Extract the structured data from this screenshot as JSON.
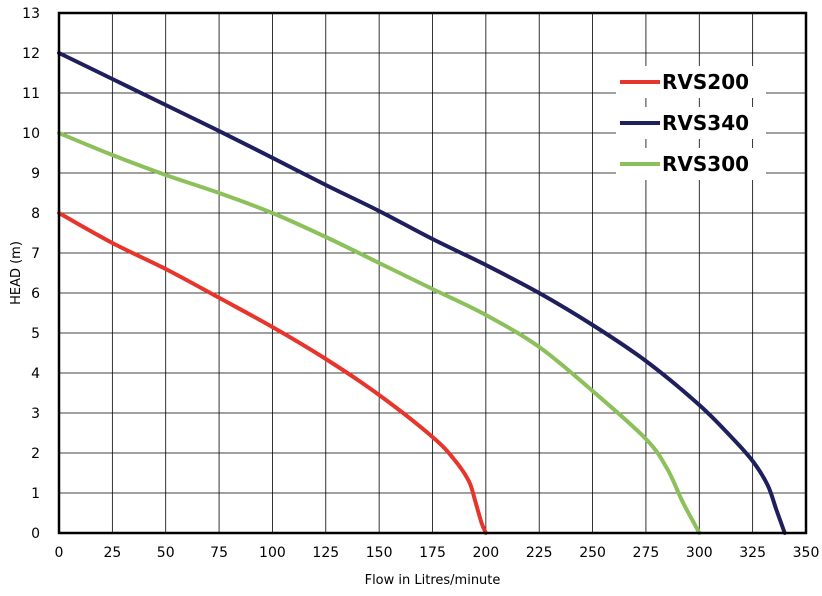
{
  "chart_data": {
    "type": "line",
    "xlabel": "Flow in Litres/minute",
    "ylabel": "HEAD (m)",
    "xlim": [
      0,
      350
    ],
    "ylim": [
      0,
      13
    ],
    "xticks": [
      "0",
      "25",
      "50",
      "75",
      "100",
      "125",
      "150",
      "175",
      "200",
      "225",
      "250",
      "275",
      "300",
      "325",
      "350"
    ],
    "yticks": [
      "0",
      "1",
      "2",
      "3",
      "4",
      "5",
      "6",
      "7",
      "8",
      "9",
      "10",
      "11",
      "12",
      "13"
    ],
    "grid": true,
    "legend_position": "top-right",
    "series": [
      {
        "name": "RVS200",
        "color": "#e8352b",
        "points": [
          [
            0,
            8
          ],
          [
            25,
            7.25
          ],
          [
            50,
            6.6
          ],
          [
            75,
            5.88
          ],
          [
            100,
            5.15
          ],
          [
            125,
            4.35
          ],
          [
            150,
            3.45
          ],
          [
            175,
            2.4
          ],
          [
            185,
            1.85
          ],
          [
            192,
            1.3
          ],
          [
            195,
            0.8
          ],
          [
            198,
            0.25
          ],
          [
            200,
            0
          ]
        ]
      },
      {
        "name": "RVS340",
        "color": "#1f1f5e",
        "points": [
          [
            0,
            12
          ],
          [
            25,
            11.35
          ],
          [
            50,
            10.7
          ],
          [
            75,
            10.05
          ],
          [
            100,
            9.38
          ],
          [
            125,
            8.7
          ],
          [
            150,
            8.05
          ],
          [
            175,
            7.35
          ],
          [
            200,
            6.7
          ],
          [
            225,
            6.0
          ],
          [
            250,
            5.2
          ],
          [
            275,
            4.3
          ],
          [
            300,
            3.2
          ],
          [
            315,
            2.4
          ],
          [
            325,
            1.8
          ],
          [
            332,
            1.2
          ],
          [
            336,
            0.6
          ],
          [
            340,
            0
          ]
        ]
      },
      {
        "name": "RVS300",
        "color": "#8cc05b",
        "points": [
          [
            0,
            10
          ],
          [
            25,
            9.45
          ],
          [
            50,
            8.95
          ],
          [
            75,
            8.5
          ],
          [
            100,
            8.0
          ],
          [
            125,
            7.4
          ],
          [
            150,
            6.75
          ],
          [
            175,
            6.1
          ],
          [
            200,
            5.45
          ],
          [
            225,
            4.65
          ],
          [
            250,
            3.55
          ],
          [
            275,
            2.35
          ],
          [
            285,
            1.6
          ],
          [
            292,
            0.8
          ],
          [
            298,
            0.2
          ],
          [
            300,
            0
          ]
        ]
      }
    ]
  }
}
